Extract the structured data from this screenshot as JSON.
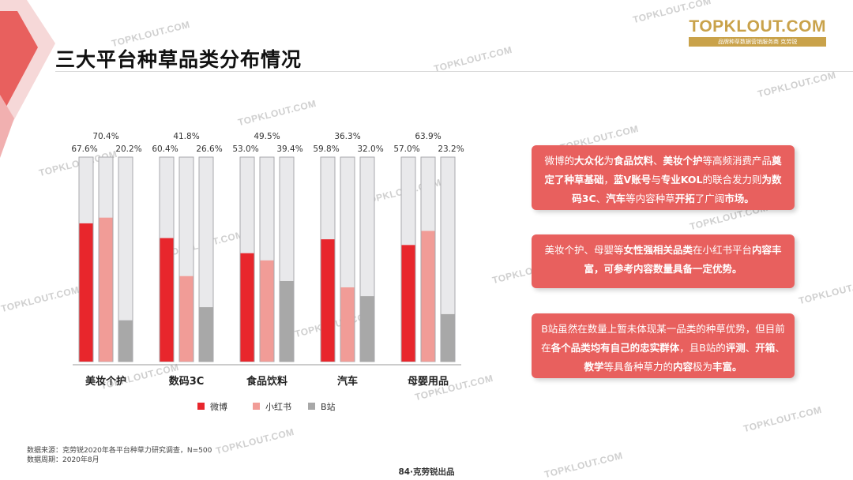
{
  "title": "三大平台种草品类分布情况",
  "logo": {
    "main": "TOPKLOUT.COM",
    "sub": "品牌种草数据营销服务商 克劳锐"
  },
  "watermark_text": "TOPKLOUT.COM",
  "chart_data": {
    "type": "bar",
    "categories": [
      "美妆个护",
      "数码3C",
      "食品饮料",
      "汽车",
      "母婴用品"
    ],
    "series": [
      {
        "name": "微博",
        "color": "#e8262c",
        "values": [
          67.6,
          60.4,
          53.0,
          59.8,
          57.0
        ]
      },
      {
        "name": "小红书",
        "color": "#f19c97",
        "values": [
          70.4,
          41.8,
          49.5,
          36.3,
          63.9
        ]
      },
      {
        "name": "B站",
        "color": "#a8a8a8",
        "values": [
          20.2,
          26.6,
          39.4,
          32.0,
          23.2
        ]
      }
    ],
    "labels": [
      [
        "67.6%",
        "70.4%",
        "20.2%"
      ],
      [
        "60.4%",
        "41.8%",
        "26.6%"
      ],
      [
        "53.0%",
        "49.5%",
        "39.4%"
      ],
      [
        "59.8%",
        "36.3%",
        "32.0%"
      ],
      [
        "57.0%",
        "63.9%",
        "23.2%"
      ]
    ],
    "ylim": [
      0,
      100
    ],
    "legend": "bottom",
    "grid": false
  },
  "insights": [
    [
      {
        "t": "微博的"
      },
      {
        "t": "大众化",
        "b": true
      },
      {
        "t": "为"
      },
      {
        "t": "食品饮料",
        "b": true
      },
      {
        "t": "、"
      },
      {
        "t": "美妆个护",
        "b": true
      },
      {
        "t": "等高频消费产品"
      },
      {
        "t": "奠定了种草基础",
        "b": true
      },
      {
        "t": "，"
      },
      {
        "t": "蓝V账号",
        "b": true
      },
      {
        "t": "与"
      },
      {
        "t": "专业KOL",
        "b": true
      },
      {
        "t": "的联合发力则"
      },
      {
        "t": "为数码3C",
        "b": true
      },
      {
        "t": "、"
      },
      {
        "t": "汽车",
        "b": true
      },
      {
        "t": "等内容种草"
      },
      {
        "t": "开拓",
        "b": true
      },
      {
        "t": "了广阔"
      },
      {
        "t": "市场。",
        "b": true
      }
    ],
    [
      {
        "t": "美妆个护、母婴等"
      },
      {
        "t": "女性强相关品类",
        "b": true
      },
      {
        "t": "在小红书平台"
      },
      {
        "t": "内容丰富",
        "b": true
      },
      {
        "t": "，可参考内容数量具备一定优势。",
        "b": true
      }
    ],
    [
      {
        "t": "B站虽然在数量上暂未体现某一品类的种草优势，但目前在"
      },
      {
        "t": "各个品类均有自己的忠实群体",
        "b": true
      },
      {
        "t": "，且B站的"
      },
      {
        "t": "评测",
        "b": true
      },
      {
        "t": "、"
      },
      {
        "t": "开箱",
        "b": true
      },
      {
        "t": "、"
      },
      {
        "t": "教学",
        "b": true
      },
      {
        "t": "等具备种草力的"
      },
      {
        "t": "内容",
        "b": true
      },
      {
        "t": "极为"
      },
      {
        "t": "丰富。",
        "b": true
      }
    ]
  ],
  "source": "数据来源：克劳锐2020年各平台种草力研究调查，N=500",
  "period": "数据周期：2020年8月",
  "footer": "84·克劳锐出品"
}
